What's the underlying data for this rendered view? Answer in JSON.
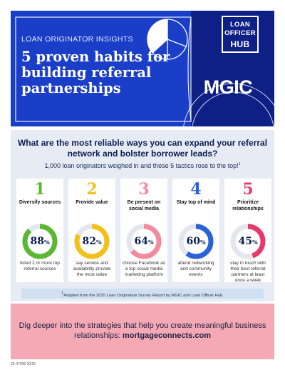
{
  "header": {
    "eyebrow": "LOAN ORIGINATOR INSIGHTS",
    "title": "5 proven habits for building referral partnerships",
    "hub_logo": [
      "LOAN",
      "OFFICER",
      "HUB"
    ],
    "mgic_logo": "MGIC"
  },
  "intro": {
    "question": "What are the most reliable ways you can expand your referral network and bolster borrower leads?",
    "subtitle": "1,000 loan originators weighed in and these 5 tactics rose to the top!",
    "subtitle_mark": "1"
  },
  "habits": [
    {
      "number": "1",
      "label": "Diversify sources",
      "percent": 88,
      "percent_text": "88",
      "description": "listed 2 or more top referral sources",
      "color": "#5cb832"
    },
    {
      "number": "2",
      "label": "Provide value",
      "percent": 82,
      "percent_text": "82",
      "description": "say service and availability provide the most value",
      "color": "#f2c01a"
    },
    {
      "number": "3",
      "label": "Be present on social media",
      "percent": 64,
      "percent_text": "64",
      "description": "choose Facebook as a top social media marketing platform",
      "color": "#f28ba0"
    },
    {
      "number": "4",
      "label": "Stay top of mind",
      "percent": 60,
      "percent_text": "60",
      "description": "attend networking and community events",
      "color": "#2a62d8"
    },
    {
      "number": "5",
      "label": "Prioritize relationships",
      "percent": 45,
      "percent_text": "45",
      "description": "stay in touch with their best referral partners at least once a week",
      "color": "#e8396a"
    }
  ],
  "percent_symbol": "%",
  "footnote": {
    "mark": "1",
    "text": "Adapted from the 2025 Loan Originators Survey Report by MGIC and Loan Officer Hub."
  },
  "cta": {
    "text": "Dig deeper into the strategies that help you create meaningful business relationships:",
    "link": "mortgageconnects.com"
  },
  "doc_code": "25-47006 10/25",
  "colors": {
    "header_blue": "#1a3ec8",
    "header_navy": "#0e1f86",
    "panel": "#e7ecf4",
    "pink_band": "#f4a9b4",
    "ring_track": "#e3e6ec"
  }
}
